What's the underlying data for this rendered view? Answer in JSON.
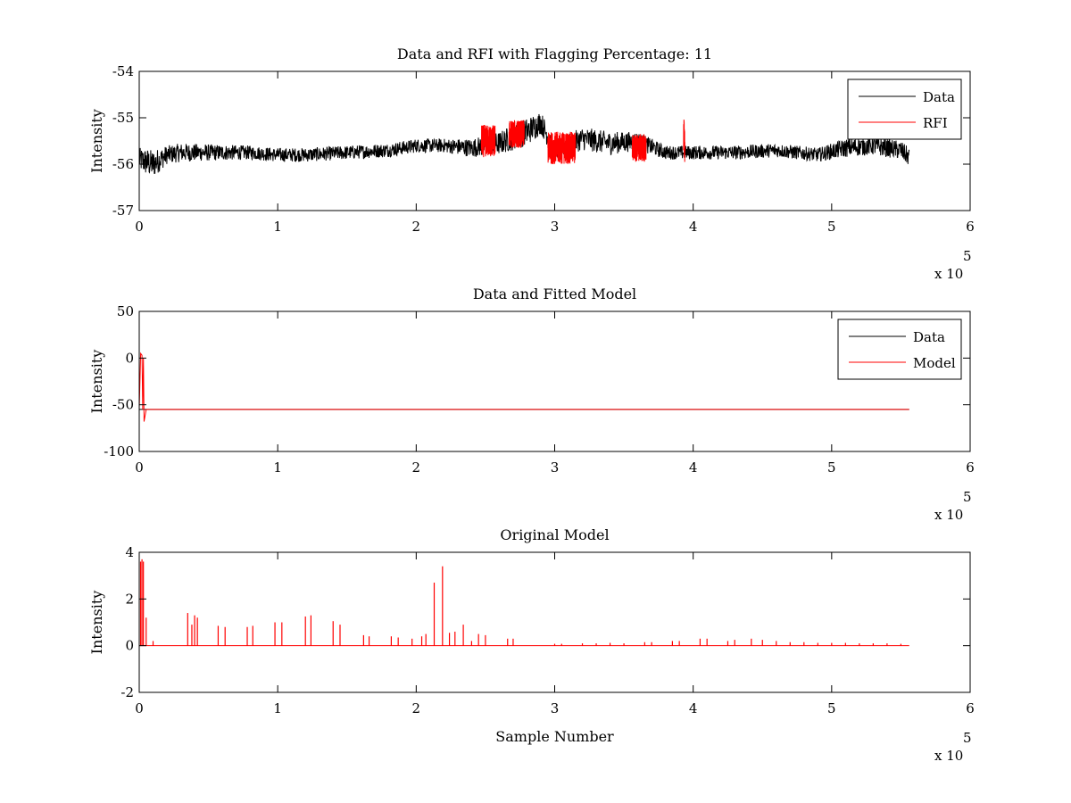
{
  "chart_data": [
    {
      "type": "line",
      "title": "Data and RFI with Flagging Percentage: 11",
      "xlabel": "",
      "ylabel": "Intensity",
      "xlim": [
        0,
        6
      ],
      "ylim": [
        -57,
        -54
      ],
      "x_multiplier_label": "x 10",
      "x_multiplier_exponent": "5",
      "xticks": [
        0,
        1,
        2,
        3,
        4,
        5,
        6
      ],
      "yticks": [
        -57,
        -56,
        -55,
        -54
      ],
      "legend": {
        "position": "top-right",
        "entries": [
          {
            "label": "Data",
            "color": "#000000"
          },
          {
            "label": "RFI",
            "color": "#ff0000"
          }
        ]
      },
      "series": [
        {
          "name": "Data",
          "color": "#000000",
          "style": "noise-band",
          "x": [
            0.0,
            0.05,
            0.1,
            0.2,
            0.3,
            0.5,
            0.8,
            1.0,
            1.2,
            1.5,
            1.8,
            2.0,
            2.2,
            2.4,
            2.6,
            2.8,
            2.9,
            3.0,
            3.2,
            3.4,
            3.6,
            3.8,
            4.0,
            4.3,
            4.6,
            4.9,
            5.1,
            5.3,
            5.5,
            5.56
          ],
          "center": [
            -55.9,
            -55.95,
            -56.0,
            -55.8,
            -55.75,
            -55.75,
            -55.75,
            -55.8,
            -55.8,
            -55.75,
            -55.7,
            -55.6,
            -55.6,
            -55.65,
            -55.55,
            -55.3,
            -55.1,
            -55.7,
            -55.45,
            -55.55,
            -55.5,
            -55.75,
            -55.75,
            -55.75,
            -55.7,
            -55.8,
            -55.65,
            -55.6,
            -55.7,
            -55.85
          ],
          "amplitude": [
            0.25,
            0.3,
            0.3,
            0.2,
            0.2,
            0.18,
            0.15,
            0.15,
            0.15,
            0.15,
            0.15,
            0.15,
            0.15,
            0.2,
            0.25,
            0.3,
            0.25,
            0.2,
            0.25,
            0.25,
            0.2,
            0.15,
            0.15,
            0.15,
            0.15,
            0.15,
            0.2,
            0.2,
            0.2,
            0.2
          ]
        },
        {
          "name": "RFI",
          "color": "#ff0000",
          "style": "noise-segments",
          "segments": [
            {
              "x": [
                2.47,
                2.57
              ],
              "center": -55.5,
              "amplitude": 0.35
            },
            {
              "x": [
                2.67,
                2.78
              ],
              "center": -55.35,
              "amplitude": 0.3
            },
            {
              "x": [
                2.95,
                3.15
              ],
              "center": -55.65,
              "amplitude": 0.35
            },
            {
              "x": [
                3.56,
                3.66
              ],
              "center": -55.65,
              "amplitude": 0.3
            },
            {
              "x": [
                3.93,
                3.94
              ],
              "center": -55.5,
              "amplitude": 0.5
            }
          ]
        }
      ]
    },
    {
      "type": "line",
      "title": "Data and Fitted Model",
      "xlabel": "",
      "ylabel": "Intensity",
      "xlim": [
        0,
        6
      ],
      "ylim": [
        -100,
        50
      ],
      "x_multiplier_label": "x 10",
      "x_multiplier_exponent": "5",
      "xticks": [
        0,
        1,
        2,
        3,
        4,
        5,
        6
      ],
      "yticks": [
        -100,
        -50,
        0,
        50
      ],
      "legend": {
        "position": "top-right",
        "entries": [
          {
            "label": "Data",
            "color": "#000000"
          },
          {
            "label": "Model",
            "color": "#ff0000"
          }
        ]
      },
      "series": [
        {
          "name": "Data",
          "color": "#000000",
          "x": [
            0,
            0.02,
            0.03,
            0.05,
            0.1,
            5.56
          ],
          "y": [
            -55,
            -55,
            -55,
            -55,
            -55,
            -55
          ]
        },
        {
          "name": "Model",
          "color": "#ff0000",
          "x": [
            0,
            0.01,
            0.02,
            0.025,
            0.03,
            0.035,
            0.05,
            0.06,
            5.56
          ],
          "y": [
            -55,
            5,
            3,
            -55,
            0,
            -68,
            -55,
            -55,
            -55
          ]
        }
      ]
    },
    {
      "type": "line",
      "title": "Original Model",
      "xlabel": "Sample Number",
      "ylabel": "Intensity",
      "xlim": [
        0,
        6
      ],
      "ylim": [
        -2,
        4
      ],
      "x_multiplier_label": "x 10",
      "x_multiplier_exponent": "5",
      "xticks": [
        0,
        1,
        2,
        3,
        4,
        5,
        6
      ],
      "yticks": [
        -2,
        0,
        2,
        4
      ],
      "series": [
        {
          "name": "Model",
          "color": "#ff0000",
          "style": "spikes",
          "baseline": 0,
          "xrange": [
            0,
            5.56
          ],
          "spikes": [
            {
              "x": 0.01,
              "y": 3.6
            },
            {
              "x": 0.02,
              "y": 3.7
            },
            {
              "x": 0.03,
              "y": 3.6
            },
            {
              "x": 0.05,
              "y": 1.2
            },
            {
              "x": 0.1,
              "y": 0.2
            },
            {
              "x": 0.35,
              "y": 1.4
            },
            {
              "x": 0.38,
              "y": 0.9
            },
            {
              "x": 0.4,
              "y": 1.3
            },
            {
              "x": 0.42,
              "y": 1.2
            },
            {
              "x": 0.57,
              "y": 0.85
            },
            {
              "x": 0.62,
              "y": 0.8
            },
            {
              "x": 0.78,
              "y": 0.8
            },
            {
              "x": 0.82,
              "y": 0.85
            },
            {
              "x": 0.98,
              "y": 1.0
            },
            {
              "x": 1.03,
              "y": 1.0
            },
            {
              "x": 1.2,
              "y": 1.25
            },
            {
              "x": 1.24,
              "y": 1.3
            },
            {
              "x": 1.4,
              "y": 1.05
            },
            {
              "x": 1.45,
              "y": 0.9
            },
            {
              "x": 1.62,
              "y": 0.45
            },
            {
              "x": 1.66,
              "y": 0.4
            },
            {
              "x": 1.82,
              "y": 0.4
            },
            {
              "x": 1.87,
              "y": 0.35
            },
            {
              "x": 1.97,
              "y": 0.3
            },
            {
              "x": 2.04,
              "y": 0.4
            },
            {
              "x": 2.07,
              "y": 0.5
            },
            {
              "x": 2.13,
              "y": 2.7
            },
            {
              "x": 2.19,
              "y": 3.4
            },
            {
              "x": 2.24,
              "y": 0.55
            },
            {
              "x": 2.28,
              "y": 0.6
            },
            {
              "x": 2.34,
              "y": 0.9
            },
            {
              "x": 2.4,
              "y": 0.2
            },
            {
              "x": 2.45,
              "y": 0.5
            },
            {
              "x": 2.5,
              "y": 0.45
            },
            {
              "x": 2.66,
              "y": 0.3
            },
            {
              "x": 2.7,
              "y": 0.3
            },
            {
              "x": 3.0,
              "y": 0.08
            },
            {
              "x": 3.05,
              "y": 0.08
            },
            {
              "x": 3.2,
              "y": 0.1
            },
            {
              "x": 3.3,
              "y": 0.1
            },
            {
              "x": 3.4,
              "y": 0.12
            },
            {
              "x": 3.5,
              "y": 0.1
            },
            {
              "x": 3.65,
              "y": 0.15
            },
            {
              "x": 3.7,
              "y": 0.15
            },
            {
              "x": 3.85,
              "y": 0.2
            },
            {
              "x": 3.9,
              "y": 0.2
            },
            {
              "x": 4.05,
              "y": 0.3
            },
            {
              "x": 4.1,
              "y": 0.3
            },
            {
              "x": 4.25,
              "y": 0.2
            },
            {
              "x": 4.3,
              "y": 0.25
            },
            {
              "x": 4.42,
              "y": 0.3
            },
            {
              "x": 4.5,
              "y": 0.25
            },
            {
              "x": 4.6,
              "y": 0.2
            },
            {
              "x": 4.7,
              "y": 0.15
            },
            {
              "x": 4.8,
              "y": 0.15
            },
            {
              "x": 4.9,
              "y": 0.12
            },
            {
              "x": 5.0,
              "y": 0.12
            },
            {
              "x": 5.1,
              "y": 0.12
            },
            {
              "x": 5.2,
              "y": 0.1
            },
            {
              "x": 5.3,
              "y": 0.1
            },
            {
              "x": 5.4,
              "y": 0.1
            },
            {
              "x": 5.5,
              "y": 0.08
            }
          ]
        }
      ]
    }
  ]
}
